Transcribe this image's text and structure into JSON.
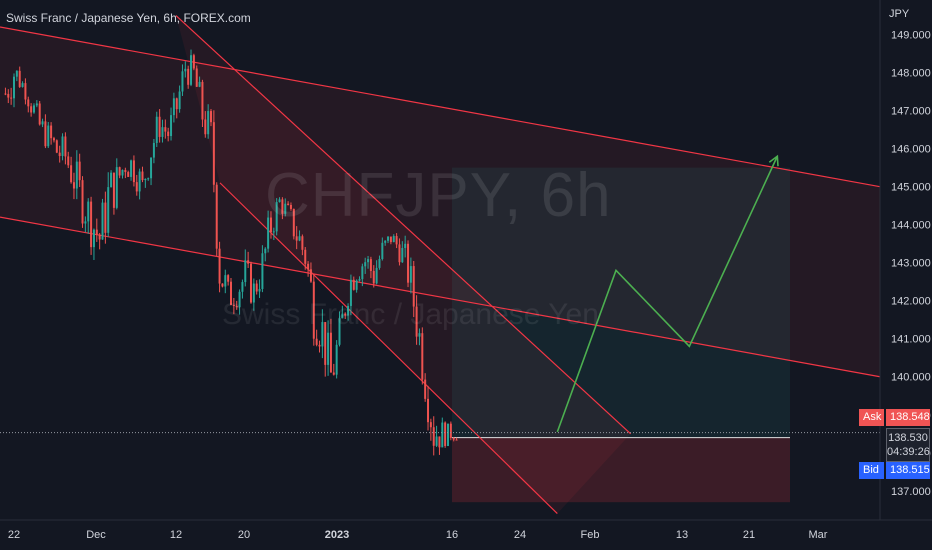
{
  "header": {
    "title": "Swiss Franc / Japanese Yen, 6h, FOREX.com",
    "currency": "JPY"
  },
  "watermark": {
    "symbol": "CHFJPY, 6h",
    "name": "Swiss Franc / Japanese Yen"
  },
  "price_tags": {
    "ask_label": "Ask",
    "ask_value": "138.548",
    "last_value": "138.530",
    "countdown": "04:39:26",
    "bid_label": "Bid",
    "bid_value": "138.515"
  },
  "colors": {
    "background": "#131722",
    "up": "#26a69a",
    "down": "#ef5350",
    "channel": "#f23645",
    "projection": "#4caf50",
    "ask": "#f05454",
    "bid": "#2962ff"
  },
  "chart_data": {
    "type": "candlestick",
    "y_unit": "JPY",
    "ylim": [
      136.6,
      149.7
    ],
    "y_ticks": [
      137,
      138,
      139,
      140,
      141,
      142,
      143,
      144,
      145,
      146,
      147,
      148,
      149
    ],
    "y_tick_labels": [
      "137.000",
      "138.000",
      "139.000",
      "140.000",
      "141.000",
      "142.000",
      "143.000",
      "144.000",
      "145.000",
      "146.000",
      "147.000",
      "148.000",
      "149.000"
    ],
    "x_ticks": [
      "22",
      "Dec",
      "12",
      "20",
      "2023",
      "16",
      "24",
      "Feb",
      "13",
      "21",
      "Mar"
    ],
    "grid": false,
    "current_price": 138.53,
    "path_anchors": [
      [
        146.9,
        148.0
      ],
      [
        147.4,
        148.6
      ],
      [
        147.5,
        147.9
      ],
      [
        146.8,
        147.6
      ],
      [
        146.2,
        147.0
      ],
      [
        145.9,
        146.7
      ],
      [
        145.4,
        146.5
      ],
      [
        145.3,
        146.3
      ],
      [
        144.6,
        145.9
      ],
      [
        144.0,
        145.3
      ],
      [
        143.4,
        144.8
      ],
      [
        143.0,
        144.3
      ],
      [
        143.8,
        145.6
      ],
      [
        144.6,
        145.7
      ],
      [
        145.2,
        146.0
      ],
      [
        145.0,
        146.1
      ],
      [
        144.6,
        145.4
      ],
      [
        145.4,
        146.6
      ],
      [
        146.2,
        147.1
      ],
      [
        146.0,
        146.8
      ],
      [
        146.6,
        147.6
      ],
      [
        147.7,
        148.6
      ],
      [
        147.5,
        148.4
      ],
      [
        146.3,
        147.5
      ],
      [
        145.7,
        146.9
      ],
      [
        142.0,
        143.8
      ],
      [
        141.6,
        142.6
      ],
      [
        141.8,
        142.8
      ],
      [
        142.0,
        143.2
      ],
      [
        141.8,
        142.7
      ],
      [
        142.3,
        143.5
      ],
      [
        143.4,
        144.6
      ],
      [
        144.3,
        144.9
      ],
      [
        144.0,
        144.6
      ],
      [
        143.2,
        144.3
      ],
      [
        142.6,
        143.8
      ],
      [
        141.0,
        142.6
      ],
      [
        140.5,
        141.9
      ],
      [
        139.2,
        140.8
      ],
      [
        140.4,
        141.6
      ],
      [
        141.8,
        142.9
      ],
      [
        142.4,
        143.3
      ],
      [
        142.6,
        143.5
      ],
      [
        142.2,
        143.2
      ],
      [
        142.9,
        143.7
      ],
      [
        143.4,
        143.9
      ],
      [
        143.0,
        143.8
      ],
      [
        142.2,
        143.4
      ],
      [
        140.8,
        142.3
      ],
      [
        139.3,
        140.6
      ],
      [
        137.8,
        139.4
      ],
      [
        138.1,
        138.9
      ],
      [
        138.3,
        138.7
      ]
    ],
    "channels": [
      {
        "name": "upper-descending-channel",
        "top": [
          [
            2020,
            149.2
          ],
          [
            2080,
            145.0
          ]
        ],
        "bottom": [
          [
            2020,
            144.2
          ],
          [
            2080,
            140.0
          ]
        ]
      },
      {
        "name": "steep-descending-channel",
        "top": [
          [
            2032,
            149.5
          ],
          [
            2063,
            138.5
          ]
        ],
        "bottom": [
          [
            2035,
            145.1
          ],
          [
            2058,
            136.4
          ]
        ]
      }
    ],
    "projection_path": [
      [
        2058,
        138.55
      ],
      [
        2062,
        142.8
      ],
      [
        2067,
        140.8
      ],
      [
        2073,
        145.8
      ]
    ],
    "target_zone": {
      "top": 145.5,
      "entry": 138.4,
      "bottom": 136.7
    }
  }
}
